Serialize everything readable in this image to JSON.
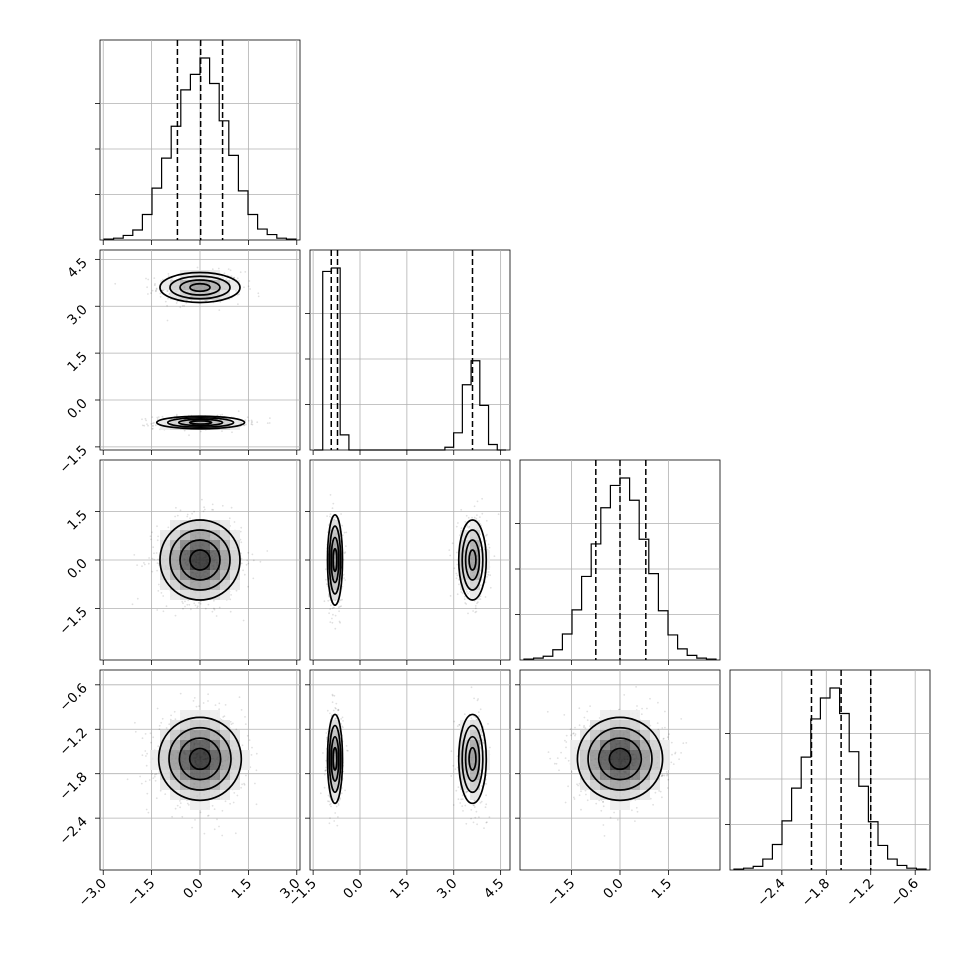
{
  "chart_data": {
    "type": "corner",
    "grid": true,
    "parameters": [
      {
        "index": 0,
        "range": [
          -3.1,
          3.1
        ],
        "ticks": [
          -3.0,
          -1.5,
          0.0,
          1.5,
          3.0
        ],
        "tick_labels": [
          "−3.0",
          "−1.5",
          "0.0",
          "1.5",
          "3.0"
        ],
        "quantiles": [
          -0.7,
          0.02,
          0.7
        ],
        "hist_counts": [
          1,
          2,
          5,
          11,
          28,
          57,
          90,
          125,
          165,
          182,
          200,
          172,
          131,
          93,
          54,
          28,
          12,
          6,
          2,
          1
        ]
      },
      {
        "index": 1,
        "range": [
          -1.6,
          4.8
        ],
        "ticks": [
          -1.5,
          0.0,
          1.5,
          3.0,
          4.5
        ],
        "tick_labels": [
          "−1.5",
          "0.0",
          "1.5",
          "3.0",
          "4.5"
        ],
        "quantiles": [
          -0.92,
          -0.72,
          3.6
        ],
        "hist_counts": [
          0,
          260,
          265,
          22,
          0,
          0,
          0,
          0,
          0,
          0,
          0,
          0,
          0,
          0,
          0,
          4,
          25,
          95,
          130,
          65,
          8,
          0
        ]
      },
      {
        "index": 2,
        "range": [
          -3.1,
          3.1
        ],
        "ticks": [
          -1.5,
          0.0,
          1.5
        ],
        "tick_labels": [
          "−1.5",
          "0.0",
          "1.5"
        ],
        "quantiles": [
          -0.75,
          0.0,
          0.8
        ],
        "hist_counts": [
          1,
          2,
          4,
          11,
          28,
          54,
          90,
          125,
          164,
          188,
          196,
          172,
          130,
          93,
          53,
          27,
          12,
          5,
          2,
          1
        ]
      },
      {
        "index": 3,
        "range": [
          -3.1,
          -0.4
        ],
        "ticks": [
          -2.4,
          -1.8,
          -1.2,
          -0.6
        ],
        "tick_labels": [
          "−2.4",
          "−1.8",
          "−1.2",
          "−0.6"
        ],
        "quantiles": [
          -2.0,
          -1.6,
          -1.2
        ],
        "hist_counts": [
          1,
          2,
          4,
          12,
          28,
          54,
          90,
          124,
          166,
          189,
          200,
          172,
          130,
          92,
          53,
          27,
          12,
          5,
          2,
          1
        ]
      }
    ],
    "pairs": [
      {
        "row": 1,
        "col": 0,
        "modes": [
          {
            "mx": 0.0,
            "my": 3.6,
            "sx": 0.62,
            "sy": 0.24,
            "w": 0.5
          },
          {
            "mx": 0.02,
            "my": -0.72,
            "sx": 0.68,
            "sy": 0.1,
            "w": 0.5
          }
        ]
      },
      {
        "row": 2,
        "col": 0,
        "modes": [
          {
            "mx": 0.0,
            "my": 0.0,
            "sx": 0.62,
            "sy": 0.62,
            "w": 1.0
          }
        ]
      },
      {
        "row": 2,
        "col": 1,
        "modes": [
          {
            "mx": -0.8,
            "my": 0.0,
            "sx": 0.12,
            "sy": 0.7,
            "w": 0.5
          },
          {
            "mx": 3.6,
            "my": 0.0,
            "sx": 0.22,
            "sy": 0.62,
            "w": 0.5
          }
        ]
      },
      {
        "row": 3,
        "col": 0,
        "modes": [
          {
            "mx": 0.0,
            "my": -1.6,
            "sx": 0.64,
            "sy": 0.28,
            "w": 1.0
          }
        ]
      },
      {
        "row": 3,
        "col": 1,
        "modes": [
          {
            "mx": -0.8,
            "my": -1.6,
            "sx": 0.12,
            "sy": 0.3,
            "w": 0.5
          },
          {
            "mx": 3.6,
            "my": -1.6,
            "sx": 0.22,
            "sy": 0.3,
            "w": 0.5
          }
        ]
      },
      {
        "row": 3,
        "col": 2,
        "modes": [
          {
            "mx": 0.0,
            "my": -1.6,
            "sx": 0.66,
            "sy": 0.28,
            "w": 1.0
          }
        ]
      }
    ]
  }
}
